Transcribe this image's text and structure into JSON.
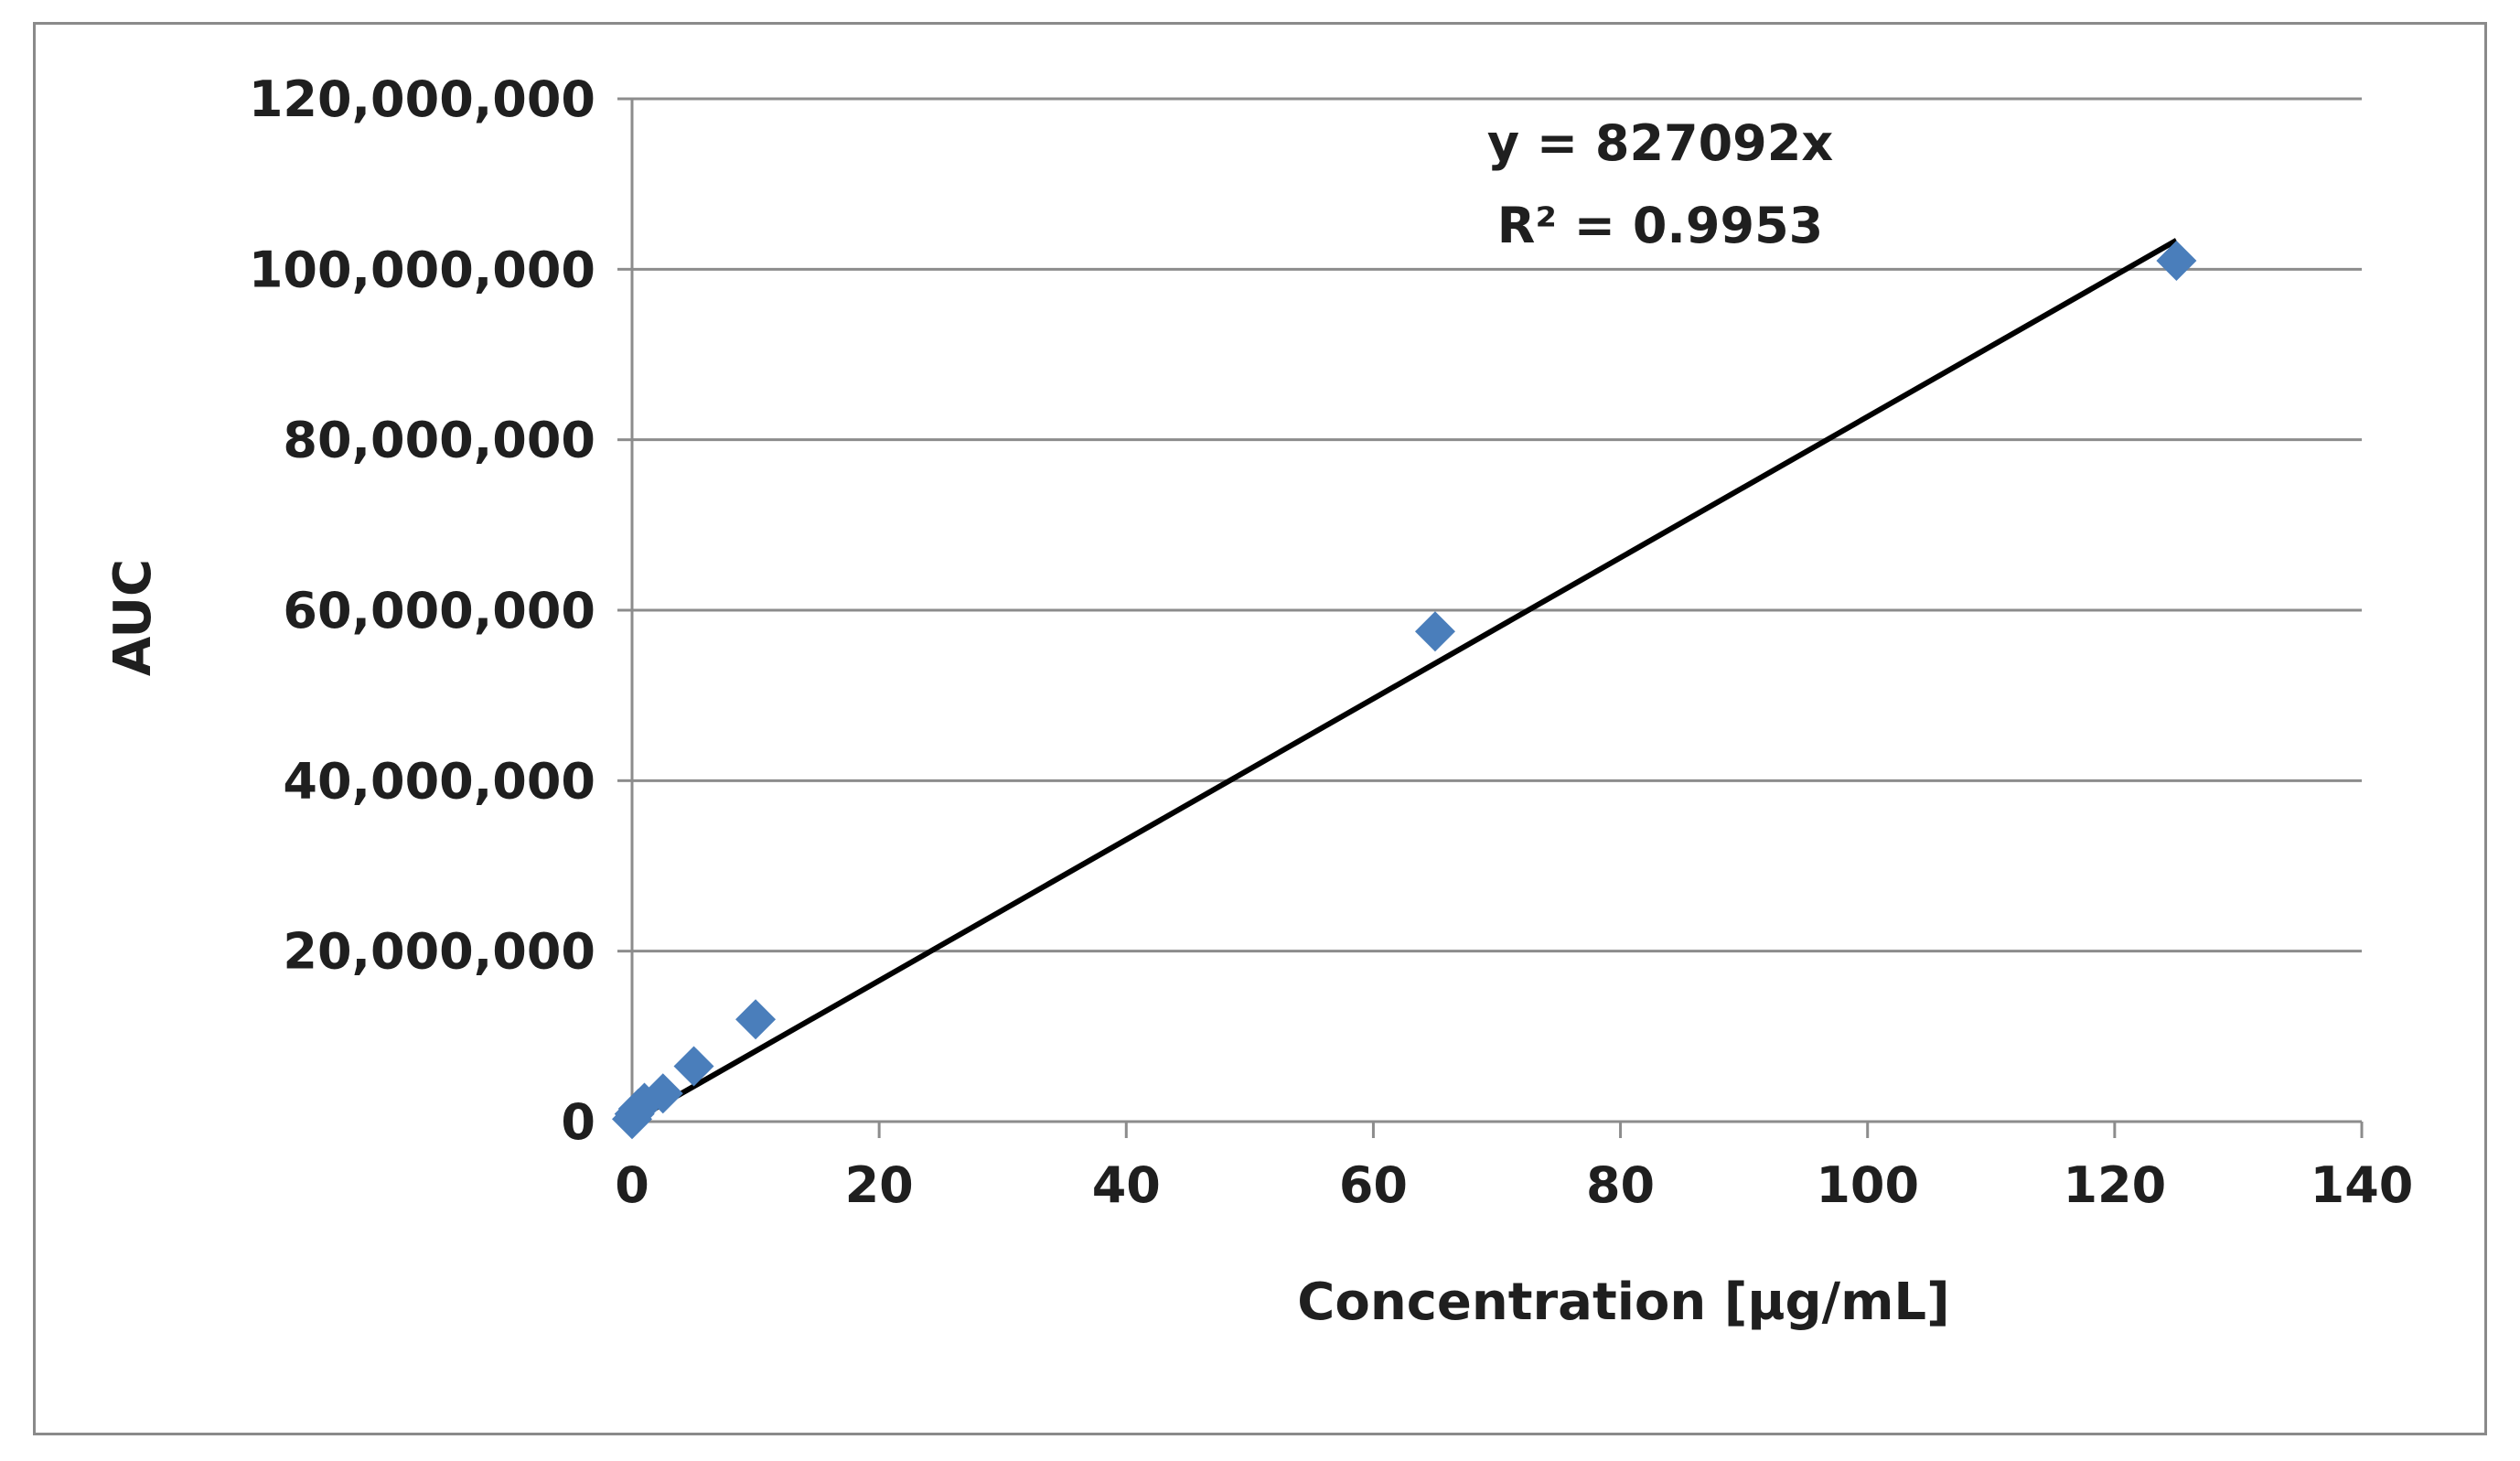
{
  "chart_data": {
    "type": "scatter",
    "title": "",
    "xlabel": "Concentration [µg/mL]",
    "ylabel": "AUC",
    "xlim": [
      0,
      140
    ],
    "ylim": [
      0,
      120000000
    ],
    "x_ticks": [
      0,
      20,
      40,
      60,
      80,
      100,
      120,
      140
    ],
    "x_tick_labels": [
      "0",
      "20",
      "40",
      "60",
      "80",
      "100",
      "120",
      "140"
    ],
    "y_ticks": [
      0,
      20000000,
      40000000,
      60000000,
      80000000,
      100000000,
      120000000
    ],
    "y_tick_labels": [
      "0",
      "20,000,000",
      "40,000,000",
      "60,000,000",
      "80,000,000",
      "100,000,000",
      "120,000,000"
    ],
    "grid": true,
    "series": [
      {
        "name": "AUC",
        "color": "#4a7ebb",
        "marker": "diamond",
        "x": [
          0,
          0.2,
          0.5,
          1,
          2.5,
          5,
          10,
          65,
          125
        ],
        "y": [
          300000,
          900000,
          1500000,
          2200000,
          3300000,
          6500000,
          12000000,
          57500000,
          101000000
        ]
      }
    ],
    "trendline": {
      "type": "linear-through-origin",
      "slope": 827092,
      "x_range": [
        0,
        125
      ],
      "color": "#000000",
      "equation_label": "y = 827092x",
      "r2_label": "R² = 0.9953"
    }
  }
}
